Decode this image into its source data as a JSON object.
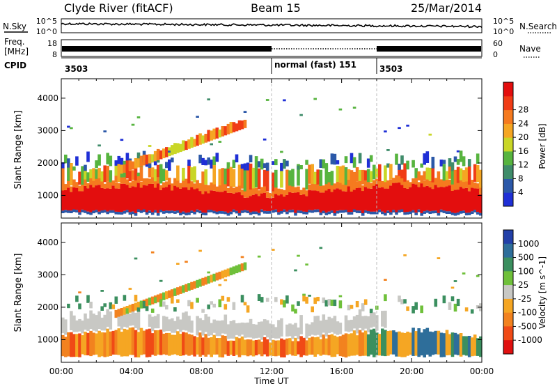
{
  "header": {
    "station": "Clyde River (fitACF)",
    "beam": "Beam 15",
    "date": "25/Mar/2014"
  },
  "noise_panel": {
    "left_label": "N.Sky",
    "right_label": "N.Search",
    "ticks_left": [
      "10^5",
      "10^0"
    ],
    "ticks_right": [
      "10^5",
      "10^0"
    ]
  },
  "freq_panel": {
    "left_label_1": "Freq.",
    "left_label_2": "[MHz]",
    "right_label": "Nave",
    "ticks_left": [
      "18",
      "8"
    ],
    "ticks_right": [
      "60",
      "0"
    ]
  },
  "cpid_panel": {
    "label": "CPID",
    "segments": [
      {
        "start_h": 0,
        "end_h": 12,
        "text": "3503"
      },
      {
        "start_h": 12,
        "end_h": 18,
        "text": "normal (fast) 151"
      },
      {
        "start_h": 18,
        "end_h": 24,
        "text": "3503"
      }
    ]
  },
  "chart_data": [
    {
      "type": "heatmap",
      "title": "",
      "ylabel": "Slant Range [km]",
      "xlabel": "",
      "ylim": [
        300,
        4600
      ],
      "yticks": [
        1000,
        2000,
        3000,
        4000
      ],
      "xlim": [
        0,
        24
      ],
      "colorbar": {
        "label": "Power [dB]",
        "ticks": [
          "4",
          "8",
          "12",
          "16",
          "20",
          "24",
          "28"
        ],
        "colors": [
          "#1f2fd6",
          "#2b58a8",
          "#3f8c6a",
          "#57b43f",
          "#c9d627",
          "#f5a623",
          "#f57a1f",
          "#f03c16",
          "#e30e0e"
        ]
      },
      "features": [
        {
          "name": "main-band",
          "from_h": 0,
          "to_h": 24,
          "range_km": [
            500,
            1200
          ],
          "power_db": 28
        },
        {
          "name": "rising-arc",
          "from_h": 3,
          "to_h": 10.5,
          "range_km": [
            1500,
            3300
          ],
          "power_db": 16
        },
        {
          "name": "upper-scatter",
          "from_h": 1,
          "to_h": 23.5,
          "range_km": [
            1700,
            2200
          ],
          "power_db": 8
        }
      ]
    },
    {
      "type": "heatmap",
      "title": "",
      "ylabel": "Slant Range [km]",
      "xlabel": "Time UT",
      "ylim": [
        300,
        4600
      ],
      "yticks": [
        1000,
        2000,
        3000,
        4000
      ],
      "xlim": [
        0,
        24
      ],
      "xticks": [
        "00:00",
        "04:00",
        "08:00",
        "12:00",
        "16:00",
        "20:00",
        "00:00"
      ],
      "colorbar": {
        "label": "Velocity [m s^-1]",
        "ticks": [
          "1000",
          "500",
          "100",
          "25",
          "-25",
          "-100",
          "-500",
          "-1000"
        ],
        "colors": [
          "#2240a8",
          "#2e6e9a",
          "#3b8f5f",
          "#6fc03a",
          "#c8c8c4",
          "#f5a623",
          "#f2821f",
          "#f04a16",
          "#e01010"
        ]
      },
      "features": [
        {
          "name": "main-band",
          "from_h": 0,
          "to_h": 24,
          "range_km": [
            500,
            1200
          ],
          "velocity_ms": -100
        },
        {
          "name": "grey-band",
          "from_h": 0,
          "to_h": 18,
          "range_km": [
            1300,
            1900
          ],
          "velocity_ms": 0
        },
        {
          "name": "rising-arc",
          "from_h": 3,
          "to_h": 10.5,
          "range_km": [
            1600,
            3300
          ],
          "velocity_ms": -100
        }
      ]
    }
  ]
}
